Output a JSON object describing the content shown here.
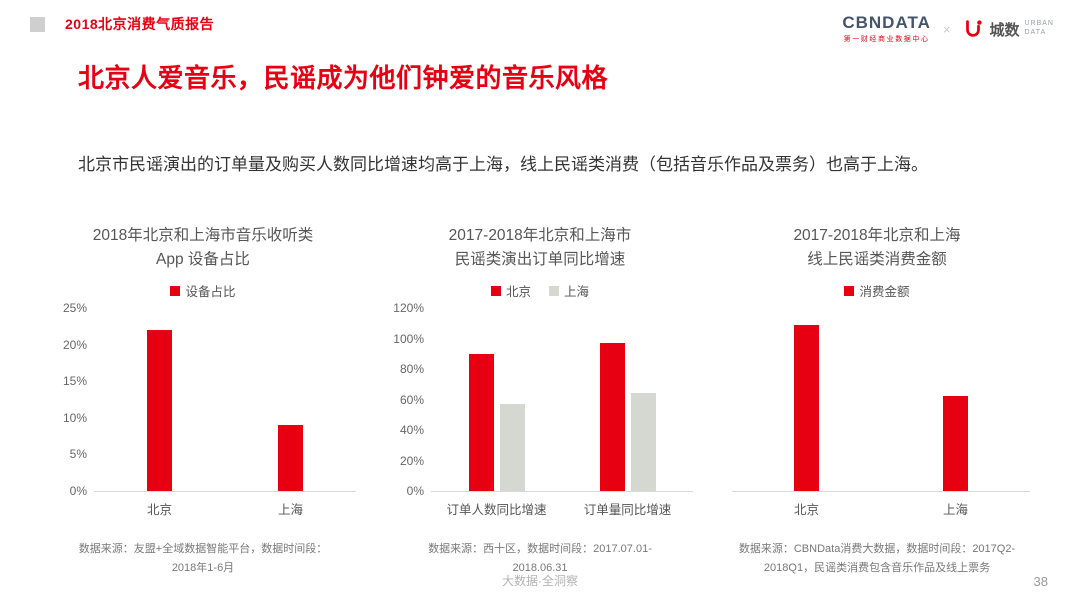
{
  "page": {
    "report_title": "2018北京消费气质报告",
    "title": "北京人爱音乐，民谣成为他们钟爱的音乐风格",
    "subtitle": "北京市民谣演出的订单量及购买人数同比增速均高于上海，线上民谣类消费（包括音乐作品及票务）也高于上海。",
    "footer_center": "大数据·全洞察",
    "page_number": "38"
  },
  "logos": {
    "cbndata": "CBNDATA",
    "cbndata_sub": "第一财经商业数据中心",
    "separator": "×",
    "urban_name": "城数",
    "urban_sub_1": "URBAN",
    "urban_sub_2": "DATA"
  },
  "colors": {
    "accent_red": "#e60012",
    "shanghai_gray": "#d4d8d0",
    "axis_gray": "#d9d9d9"
  },
  "chart_data": [
    {
      "type": "bar",
      "title_lines": [
        "2018年北京和上海市音乐收听类",
        "App 设备占比"
      ],
      "categories": [
        "北京",
        "上海"
      ],
      "series": [
        {
          "name": "设备占比",
          "color": "#e60012",
          "values": [
            22,
            9
          ]
        }
      ],
      "ylim": [
        0,
        25
      ],
      "yticks": [
        "0%",
        "5%",
        "10%",
        "15%",
        "20%",
        "25%"
      ],
      "legend_position": "top",
      "grid": false,
      "source_lines": [
        "数据来源：友盟+全域数据智能平台，数据时间段：",
        "2018年1-6月"
      ]
    },
    {
      "type": "bar",
      "title_lines": [
        "2017-2018年北京和上海市",
        "民谣类演出订单同比增速"
      ],
      "categories": [
        "订单人数同比增速",
        "订单量同比增速"
      ],
      "series": [
        {
          "name": "北京",
          "color": "#e60012",
          "values": [
            90,
            97
          ]
        },
        {
          "name": "上海",
          "color": "#d4d8d0",
          "values": [
            57,
            64
          ]
        }
      ],
      "ylim": [
        0,
        120
      ],
      "yticks": [
        "0%",
        "20%",
        "40%",
        "60%",
        "80%",
        "100%",
        "120%"
      ],
      "legend_position": "top",
      "grid": false,
      "source_lines": [
        "数据来源：西十区，数据时间段：2017.07.01-",
        "2018.06.31"
      ]
    },
    {
      "type": "bar",
      "title_lines": [
        "2017-2018年北京和上海",
        "线上民谣类消费金额"
      ],
      "categories": [
        "北京",
        "上海"
      ],
      "series": [
        {
          "name": "消费金额",
          "color": "#e60012",
          "values": [
            100,
            57
          ]
        }
      ],
      "ylim": [
        0,
        110
      ],
      "yticks": [],
      "legend_position": "top",
      "grid": false,
      "axis_value_labels_hidden": true,
      "source_lines": [
        "数据来源：CBNData消费大数据，数据时间段：2017Q2-",
        "2018Q1，民谣类消费包含音乐作品及线上票务"
      ]
    }
  ]
}
